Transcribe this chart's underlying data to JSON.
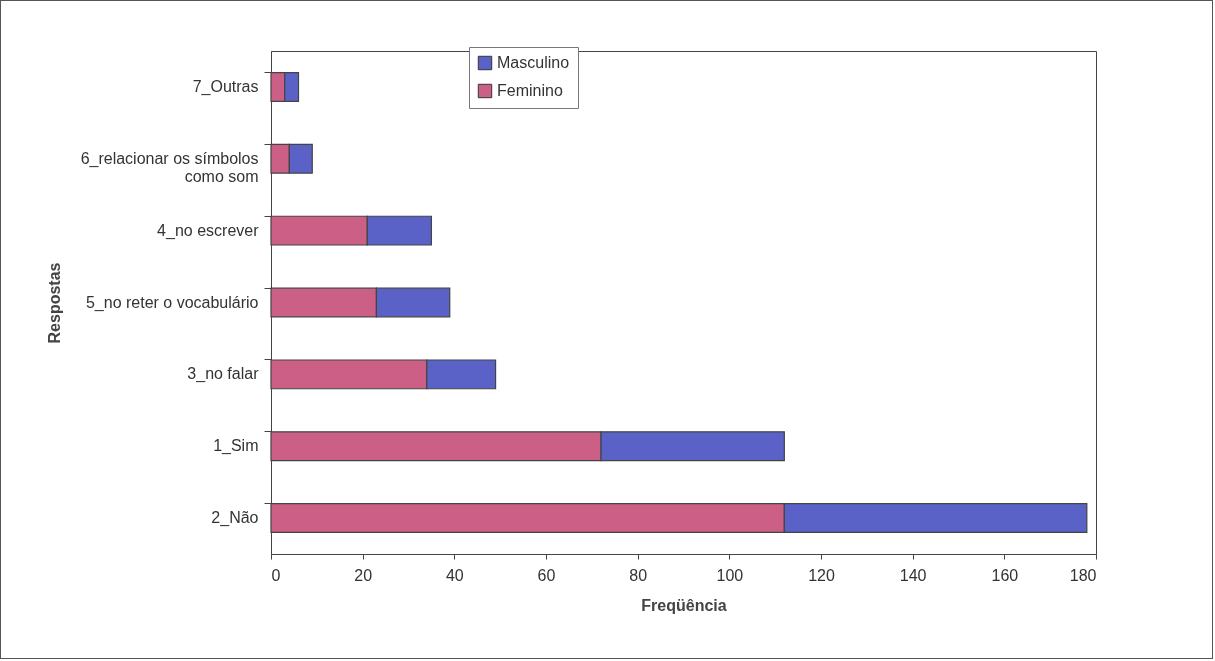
{
  "chart_data": {
    "type": "bar",
    "orientation": "horizontal",
    "stacked": true,
    "xlabel": "Freqüência",
    "ylabel": "Respostas",
    "categories": [
      "7_Outras",
      "6_relacionar os símbolos como som",
      "4_no escrever",
      "5_no reter o vocabulário",
      "3_no falar",
      "1_Sim",
      "2_Não"
    ],
    "series": [
      {
        "name": "Feminino",
        "color": "#cc5f85",
        "values": [
          3,
          4,
          21,
          23,
          34,
          72,
          112
        ]
      },
      {
        "name": "Masculino",
        "color": "#5a62c8",
        "values": [
          3,
          5,
          14,
          16,
          15,
          40,
          66
        ]
      }
    ],
    "xlim": [
      0,
      180
    ],
    "xticks": [
      0,
      20,
      40,
      60,
      80,
      100,
      120,
      140,
      160,
      180
    ],
    "grid": false,
    "legend": "top"
  }
}
